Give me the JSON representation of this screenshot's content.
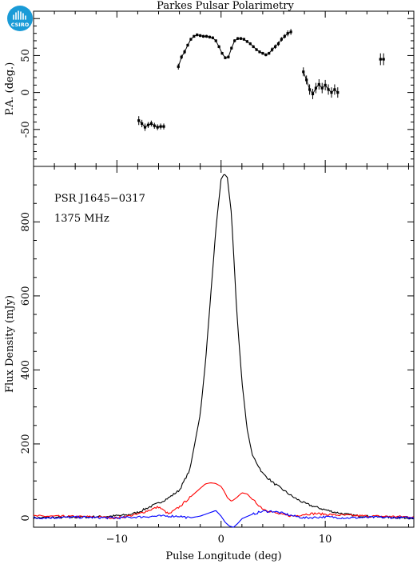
{
  "title": "Parkes Pulsar Polarimetry",
  "logo": {
    "name": "csiro-logo",
    "text": "CSIRO",
    "color": "#1a9bd7"
  },
  "colors": {
    "total_intensity": "#000000",
    "linear": "#ff0000",
    "circular": "#0000ff"
  },
  "chart_data": [
    {
      "type": "scatter",
      "panel": "top",
      "ylabel": "P.A. (deg.)",
      "xlim": [
        -18,
        18.5
      ],
      "ylim": [
        -100,
        110
      ],
      "yticks": [
        -50,
        0,
        50
      ],
      "series": [
        {
          "points": [
            {
              "x": -7.9,
              "y": -38,
              "err": 6
            },
            {
              "x": -7.6,
              "y": -42,
              "err": 5
            },
            {
              "x": -7.3,
              "y": -47,
              "err": 5
            },
            {
              "x": -7.0,
              "y": -44,
              "err": 4
            },
            {
              "x": -6.7,
              "y": -42,
              "err": 4
            },
            {
              "x": -6.4,
              "y": -45,
              "err": 4
            },
            {
              "x": -6.1,
              "y": -47,
              "err": 4
            },
            {
              "x": -5.8,
              "y": -46,
              "err": 4
            },
            {
              "x": -5.5,
              "y": -46,
              "err": 4
            }
          ]
        },
        {
          "points": [
            {
              "x": -4.1,
              "y": 35,
              "err": 4
            },
            {
              "x": -3.8,
              "y": 48,
              "err": 3
            },
            {
              "x": -3.5,
              "y": 55,
              "err": 3
            },
            {
              "x": -3.2,
              "y": 64,
              "err": 2
            },
            {
              "x": -2.9,
              "y": 72,
              "err": 2
            },
            {
              "x": -2.6,
              "y": 76,
              "err": 2
            },
            {
              "x": -2.3,
              "y": 78,
              "err": 2
            },
            {
              "x": -2.0,
              "y": 77,
              "err": 2
            },
            {
              "x": -1.7,
              "y": 76,
              "err": 2
            },
            {
              "x": -1.4,
              "y": 76,
              "err": 2
            },
            {
              "x": -1.1,
              "y": 75,
              "err": 2
            },
            {
              "x": -0.8,
              "y": 74,
              "err": 2
            },
            {
              "x": -0.5,
              "y": 70,
              "err": 2
            },
            {
              "x": -0.2,
              "y": 62,
              "err": 2
            },
            {
              "x": 0.1,
              "y": 53,
              "err": 2
            },
            {
              "x": 0.4,
              "y": 47,
              "err": 2
            },
            {
              "x": 0.7,
              "y": 48,
              "err": 2
            },
            {
              "x": 1.0,
              "y": 60,
              "err": 2
            },
            {
              "x": 1.3,
              "y": 70,
              "err": 2
            },
            {
              "x": 1.6,
              "y": 73,
              "err": 2
            },
            {
              "x": 1.9,
              "y": 73,
              "err": 2
            },
            {
              "x": 2.2,
              "y": 72,
              "err": 2
            },
            {
              "x": 2.5,
              "y": 69,
              "err": 2
            },
            {
              "x": 2.8,
              "y": 66,
              "err": 2
            },
            {
              "x": 3.1,
              "y": 62,
              "err": 2
            },
            {
              "x": 3.4,
              "y": 58,
              "err": 2
            },
            {
              "x": 3.7,
              "y": 55,
              "err": 2
            },
            {
              "x": 4.0,
              "y": 53,
              "err": 2
            },
            {
              "x": 4.3,
              "y": 51,
              "err": 2
            },
            {
              "x": 4.6,
              "y": 53,
              "err": 2
            },
            {
              "x": 4.9,
              "y": 58,
              "err": 3
            },
            {
              "x": 5.2,
              "y": 62,
              "err": 3
            },
            {
              "x": 5.5,
              "y": 66,
              "err": 3
            },
            {
              "x": 5.8,
              "y": 72,
              "err": 3
            },
            {
              "x": 6.1,
              "y": 76,
              "err": 3
            },
            {
              "x": 6.4,
              "y": 80,
              "err": 4
            },
            {
              "x": 6.7,
              "y": 82,
              "err": 4
            }
          ]
        },
        {
          "points": [
            {
              "x": 7.9,
              "y": 28,
              "err": 6
            },
            {
              "x": 8.2,
              "y": 17,
              "err": 6
            },
            {
              "x": 8.5,
              "y": 4,
              "err": 7
            },
            {
              "x": 8.8,
              "y": -2,
              "err": 7
            },
            {
              "x": 9.1,
              "y": 6,
              "err": 7
            },
            {
              "x": 9.4,
              "y": 11,
              "err": 7
            },
            {
              "x": 9.7,
              "y": 6,
              "err": 7
            },
            {
              "x": 10.0,
              "y": 10,
              "err": 7
            },
            {
              "x": 10.3,
              "y": 4,
              "err": 7
            },
            {
              "x": 10.6,
              "y": 0,
              "err": 7
            },
            {
              "x": 10.9,
              "y": 4,
              "err": 7
            },
            {
              "x": 11.2,
              "y": 0,
              "err": 7
            }
          ]
        },
        {
          "points": [
            {
              "x": 15.3,
              "y": 45,
              "err": 8
            },
            {
              "x": 15.6,
              "y": 45,
              "err": 8
            }
          ]
        }
      ]
    },
    {
      "type": "line",
      "panel": "bottom",
      "xlabel": "Pulse Longitude (deg)",
      "ylabel": "Flux Density (mJy)",
      "xlim": [
        -18,
        18.5
      ],
      "ylim": [
        -25,
        950
      ],
      "xticks": [
        -10,
        0,
        10
      ],
      "yticks": [
        0,
        200,
        400,
        600,
        800
      ],
      "annotations": [
        "PSR J1645−0317",
        "1375 MHz"
      ],
      "series": [
        {
          "key": "total",
          "x": [
            -18,
            -14,
            -11,
            -9,
            -8,
            -7,
            -6,
            -5,
            -4,
            -3,
            -2,
            -1.5,
            -1,
            -0.5,
            0,
            0.3,
            0.6,
            1,
            1.5,
            2,
            2.5,
            3,
            4,
            5,
            6,
            7,
            8,
            9,
            10,
            11,
            12,
            13,
            15,
            18.5
          ],
          "y": [
            0,
            2,
            4,
            8,
            15,
            28,
            40,
            55,
            75,
            130,
            280,
            420,
            600,
            780,
            915,
            930,
            920,
            820,
            560,
            370,
            240,
            170,
            120,
            95,
            75,
            55,
            40,
            30,
            22,
            15,
            10,
            6,
            3,
            0
          ]
        },
        {
          "key": "linear",
          "x": [
            -18,
            -12,
            -10,
            -9,
            -8,
            -7,
            -6.5,
            -6,
            -5.5,
            -5,
            -4,
            -3,
            -2,
            -1.5,
            -1,
            -0.5,
            0,
            0.3,
            0.6,
            1,
            1.5,
            2,
            2.5,
            3,
            4,
            5,
            6,
            7,
            8,
            9,
            10,
            11,
            12,
            14,
            18.5
          ],
          "y": [
            5,
            3,
            0,
            5,
            10,
            20,
            25,
            30,
            20,
            10,
            30,
            55,
            80,
            92,
            95,
            93,
            85,
            72,
            55,
            45,
            55,
            68,
            65,
            50,
            25,
            15,
            8,
            5,
            10,
            12,
            10,
            8,
            7,
            5,
            3
          ]
        },
        {
          "key": "circular",
          "x": [
            -18,
            -14,
            -10,
            -6,
            -4,
            -3,
            -2,
            -1,
            -0.5,
            0,
            0.4,
            0.8,
            1.2,
            1.6,
            2,
            3,
            4,
            5,
            6,
            7,
            8,
            10,
            12,
            15,
            18.5
          ],
          "y": [
            0,
            2,
            0,
            5,
            5,
            0,
            5,
            15,
            20,
            5,
            -12,
            -22,
            -25,
            -15,
            -2,
            10,
            18,
            18,
            12,
            5,
            0,
            3,
            0,
            2,
            0
          ]
        }
      ]
    }
  ]
}
